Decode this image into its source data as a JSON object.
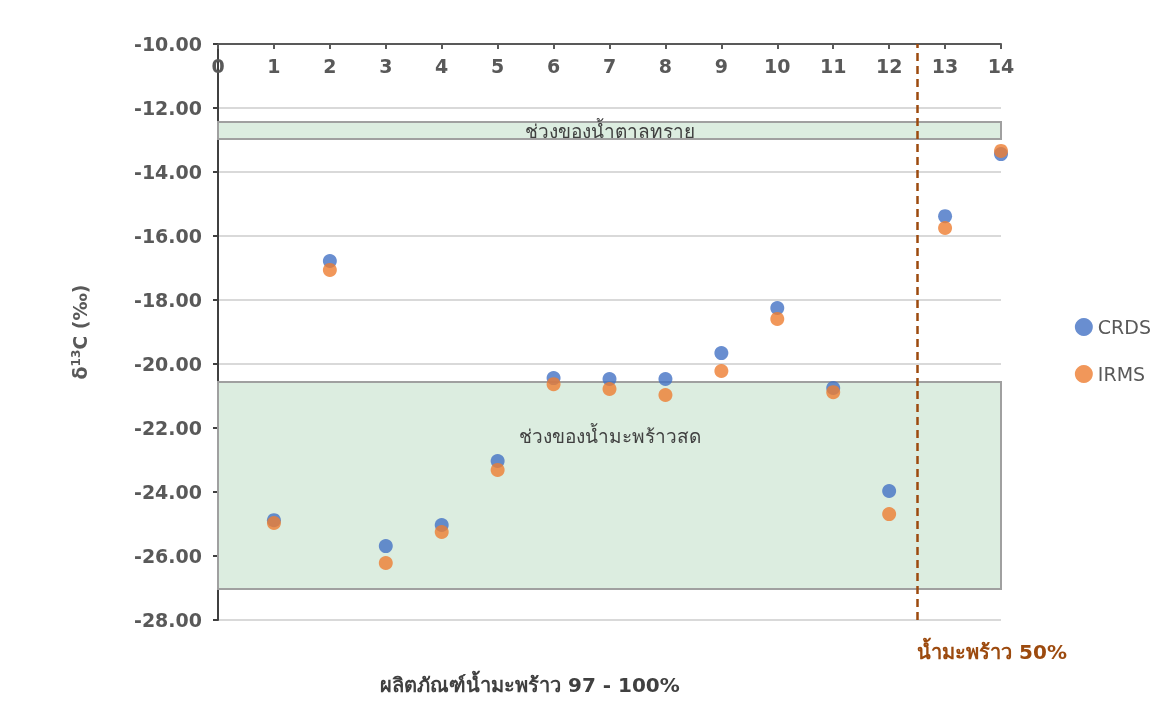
{
  "chart_data": {
    "type": "scatter",
    "xlabel": "ผลิตภัณฑ์น้ำมะพร้าว 97 - 100%",
    "ylabel": "δ$^{13}$C (‰)",
    "x": [
      1,
      2,
      3,
      4,
      5,
      6,
      7,
      8,
      9,
      10,
      11,
      12,
      13,
      14
    ],
    "series": [
      {
        "name": "CRDS",
        "color": "#4472c4",
        "values": [
          -24.88,
          -16.78,
          -25.69,
          -25.03,
          -23.03,
          -20.44,
          -20.47,
          -20.47,
          -19.66,
          -18.25,
          -20.75,
          -23.97,
          -15.38,
          -13.44
        ]
      },
      {
        "name": "IRMS",
        "color": "#ed7d31",
        "values": [
          -24.97,
          -17.06,
          -26.22,
          -25.25,
          -23.31,
          -20.63,
          -20.78,
          -20.97,
          -20.22,
          -18.59,
          -20.88,
          -24.69,
          -15.75,
          -13.34
        ]
      }
    ],
    "xlim": [
      0,
      14
    ],
    "xticks": [
      0,
      1,
      2,
      3,
      4,
      5,
      6,
      7,
      8,
      9,
      10,
      11,
      12,
      13,
      14
    ],
    "ylim": [
      -28,
      -10
    ],
    "yticks": [
      {
        "value": -10,
        "label": "-10.00"
      },
      {
        "value": -12,
        "label": "-12.00"
      },
      {
        "value": -14,
        "label": "-14.00"
      },
      {
        "value": -16,
        "label": "-16.00"
      },
      {
        "value": -18,
        "label": "-18.00"
      },
      {
        "value": -20,
        "label": "-20.00"
      },
      {
        "value": -22,
        "label": "-22.00"
      },
      {
        "value": -24,
        "label": "-24.00"
      },
      {
        "value": -26,
        "label": "-26.00"
      },
      {
        "value": -28,
        "label": "-28.00"
      }
    ],
    "bands": [
      {
        "axis": "y",
        "from": -12.97,
        "to": -12.44,
        "label": "ช่วงของน้ำตาลทราย",
        "color": "#dcede0"
      },
      {
        "axis": "y",
        "from": -27.03,
        "to": -20.56,
        "label": "ช่วงของน้ำมะพร้าวสด",
        "color": "#dcede0"
      }
    ],
    "ref_lines": [
      {
        "axis": "x",
        "value": 12.5,
        "label": "น้ำมะพร้าว 50%",
        "color": "#9c4a0e",
        "line_style": "dashed"
      }
    ],
    "grid": "y",
    "legend": "right",
    "marker": "circle"
  }
}
